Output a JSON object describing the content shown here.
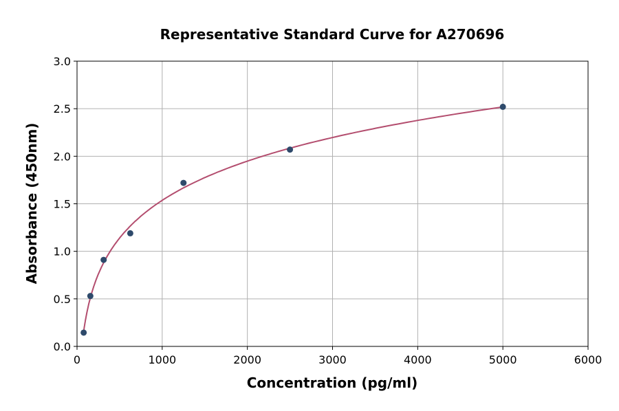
{
  "chart_data": {
    "type": "scatter",
    "title": "Representative Standard Curve for A270696",
    "xlabel": "Concentration (pg/ml)",
    "ylabel": "Absorbance (450nm)",
    "xlim": [
      0,
      6000
    ],
    "ylim": [
      0,
      3.0
    ],
    "xticks": [
      "0",
      "1000",
      "2000",
      "3000",
      "4000",
      "5000",
      "6000"
    ],
    "yticks": [
      "0.0",
      "0.5",
      "1.0",
      "1.5",
      "2.0",
      "2.5",
      "3.0"
    ],
    "grid": true,
    "legend": "none",
    "point_color": "#2e4a6b",
    "curve_color": "#b34d6e",
    "series": [
      {
        "x": [
          78.125,
          156.25,
          312.5,
          625,
          1250,
          2500,
          5000
        ],
        "y": [
          0.145,
          0.53,
          0.91,
          1.19,
          1.72,
          2.07,
          2.52
        ]
      }
    ],
    "fit_curve": "smooth fitted line through standards"
  }
}
